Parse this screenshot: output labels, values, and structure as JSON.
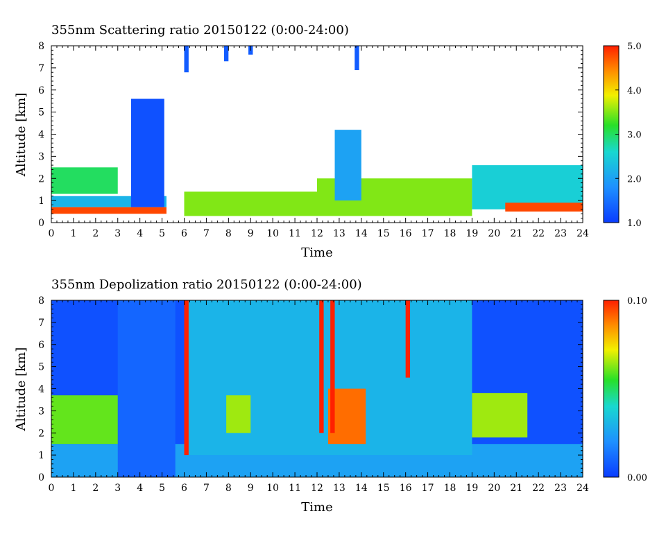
{
  "chart_data": [
    {
      "type": "heatmap",
      "title": "355nm Scattering ratio  20150122 (0:00-24:00)",
      "xlabel": "Time",
      "ylabel": "Altitude [km]",
      "xlim": [
        0,
        24
      ],
      "ylim": [
        0,
        8
      ],
      "x_ticks": [
        "0",
        "1",
        "2",
        "3",
        "4",
        "5",
        "6",
        "7",
        "8",
        "9",
        "10",
        "11",
        "12",
        "13",
        "14",
        "15",
        "16",
        "17",
        "18",
        "19",
        "20",
        "21",
        "22",
        "23",
        "24"
      ],
      "y_ticks": [
        "0",
        "1",
        "2",
        "3",
        "4",
        "5",
        "6",
        "7",
        "8"
      ],
      "colorbar": {
        "range": [
          1.0,
          5.0
        ],
        "tick_labels": [
          "1.0",
          "2.0",
          "3.0",
          "4.0",
          "5.0"
        ],
        "tick_values": [
          1.0,
          2.0,
          3.0,
          4.0,
          5.0
        ]
      },
      "features": [
        {
          "time_range": [
            0,
            5.2
          ],
          "alt_range": [
            0.4,
            0.7
          ],
          "value": 4.8
        },
        {
          "time_range": [
            0,
            5.2
          ],
          "alt_range": [
            0.7,
            1.2
          ],
          "value": 2.2
        },
        {
          "time_range": [
            0,
            3.0
          ],
          "alt_range": [
            1.3,
            2.5
          ],
          "value": 3.0
        },
        {
          "time_range": [
            3.6,
            5.1
          ],
          "alt_range": [
            0.7,
            5.6
          ],
          "value": 1.2
        },
        {
          "time_range": [
            6.0,
            12.0
          ],
          "alt_range": [
            0.3,
            1.4
          ],
          "value": 3.5
        },
        {
          "time_range": [
            12.0,
            19.0
          ],
          "alt_range": [
            0.3,
            2.0
          ],
          "value": 3.5
        },
        {
          "time_range": [
            12.8,
            14.0
          ],
          "alt_range": [
            1.0,
            4.2
          ],
          "value": 2.0
        },
        {
          "time_range": [
            19.0,
            24.0
          ],
          "alt_range": [
            0.6,
            2.6
          ],
          "value": 2.5
        },
        {
          "time_range": [
            20.5,
            24.0
          ],
          "alt_range": [
            0.5,
            0.9
          ],
          "value": 4.8
        },
        {
          "time_range": [
            6.0,
            6.2
          ],
          "alt_range": [
            6.8,
            8.0
          ],
          "value": 1.3
        },
        {
          "time_range": [
            7.8,
            8.0
          ],
          "alt_range": [
            7.3,
            8.0
          ],
          "value": 1.3
        },
        {
          "time_range": [
            8.9,
            9.1
          ],
          "alt_range": [
            7.6,
            8.0
          ],
          "value": 1.3
        },
        {
          "time_range": [
            13.7,
            13.9
          ],
          "alt_range": [
            6.9,
            8.0
          ],
          "value": 1.3
        }
      ]
    },
    {
      "type": "heatmap",
      "title": "355nm Depolization ratio  20150122 (0:00-24:00)",
      "xlabel": "Time",
      "ylabel": "Altitude [km]",
      "xlim": [
        0,
        24
      ],
      "ylim": [
        0,
        8
      ],
      "x_ticks": [
        "0",
        "1",
        "2",
        "3",
        "4",
        "5",
        "6",
        "7",
        "8",
        "9",
        "10",
        "11",
        "12",
        "13",
        "14",
        "15",
        "16",
        "17",
        "18",
        "19",
        "20",
        "21",
        "22",
        "23",
        "24"
      ],
      "y_ticks": [
        "0",
        "1",
        "2",
        "3",
        "4",
        "5",
        "6",
        "7",
        "8"
      ],
      "colorbar": {
        "range": [
          0.0,
          0.1
        ],
        "tick_labels": [
          "0.00",
          "0.10"
        ],
        "tick_values": [
          0.0,
          0.1
        ]
      },
      "features": [
        {
          "time_range": [
            0,
            24
          ],
          "alt_range": [
            0,
            8
          ],
          "value": 0.005
        },
        {
          "time_range": [
            0,
            24
          ],
          "alt_range": [
            0,
            1.5
          ],
          "value": 0.025
        },
        {
          "time_range": [
            3.0,
            5.6
          ],
          "alt_range": [
            0,
            8
          ],
          "value": 0.01
        },
        {
          "time_range": [
            0,
            3.0
          ],
          "alt_range": [
            1.5,
            3.7
          ],
          "value": 0.06
        },
        {
          "time_range": [
            6.0,
            19.0
          ],
          "alt_range": [
            1.0,
            8.0
          ],
          "value": 0.03
        },
        {
          "time_range": [
            7.9,
            9.0
          ],
          "alt_range": [
            2.0,
            3.7
          ],
          "value": 0.065
        },
        {
          "time_range": [
            12.5,
            14.2
          ],
          "alt_range": [
            1.5,
            4.0
          ],
          "value": 0.09
        },
        {
          "time_range": [
            19.0,
            21.5
          ],
          "alt_range": [
            1.8,
            3.8
          ],
          "value": 0.065
        },
        {
          "time_range": [
            6.0,
            6.2
          ],
          "alt_range": [
            1.0,
            8.0
          ],
          "value": 0.1
        },
        {
          "time_range": [
            12.1,
            12.3
          ],
          "alt_range": [
            2.0,
            8.0
          ],
          "value": 0.1
        },
        {
          "time_range": [
            12.6,
            12.8
          ],
          "alt_range": [
            2.0,
            8.0
          ],
          "value": 0.1
        },
        {
          "time_range": [
            16.0,
            16.2
          ],
          "alt_range": [
            4.5,
            8.0
          ],
          "value": 0.1
        }
      ]
    }
  ]
}
